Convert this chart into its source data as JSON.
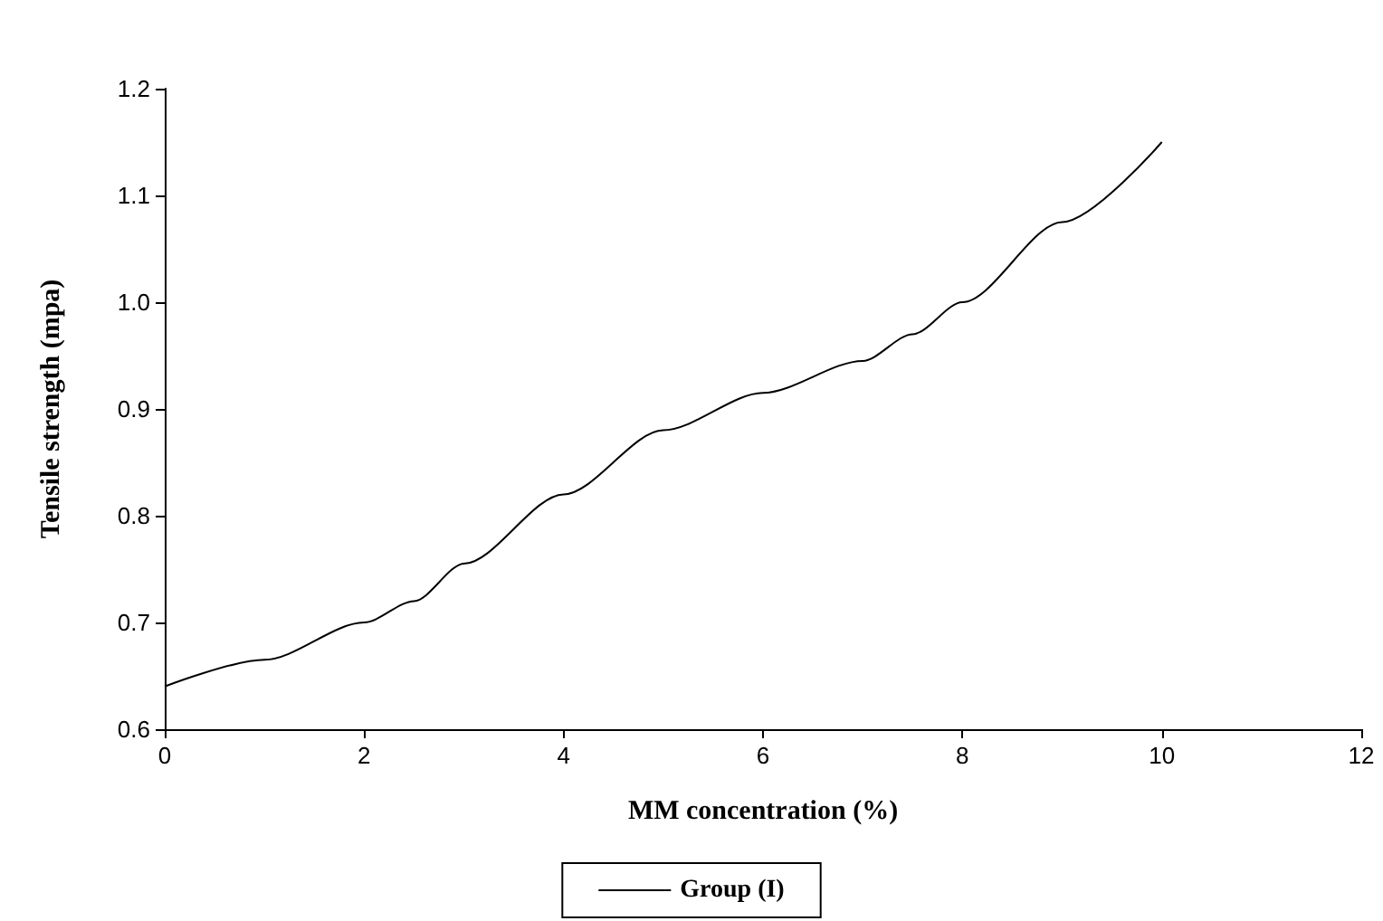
{
  "chart_data": {
    "type": "line",
    "xlabel": "MM concentration (%)",
    "ylabel": "Tensile strength (mpa)",
    "x": [
      0,
      1,
      2,
      2.5,
      3,
      4,
      5,
      6,
      7,
      7.5,
      8,
      9,
      10
    ],
    "series": [
      {
        "name": "Group (I)",
        "color": "#000000",
        "values": [
          0.64,
          0.665,
          0.7,
          0.72,
          0.755,
          0.82,
          0.88,
          0.915,
          0.945,
          0.97,
          1.0,
          1.075,
          1.15
        ]
      }
    ],
    "xlim": [
      0,
      12
    ],
    "xticks": [
      0,
      2,
      4,
      6,
      8,
      10,
      12
    ],
    "ylim": [
      0.6,
      1.2
    ],
    "yticks": [
      0.6,
      0.7,
      0.8,
      0.9,
      {
        "value": 1,
        "label": "1.0"
      },
      1.1,
      1.2
    ],
    "grid": false,
    "legend": "bottom",
    "marker": "none",
    "line_style": "solid"
  }
}
